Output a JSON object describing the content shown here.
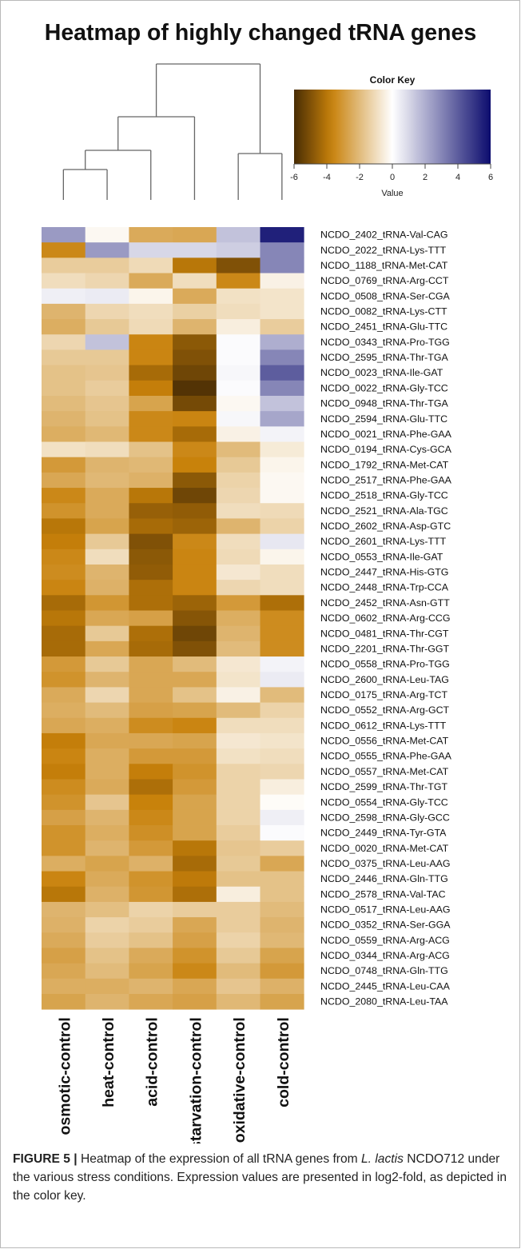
{
  "chart_data": {
    "type": "heatmap",
    "title": "Heatmap of highly changed tRNA genes",
    "color_key": {
      "title": "Color Key",
      "xlabel": "Value",
      "ticks": [
        -6,
        -4,
        -2,
        0,
        2,
        4,
        6
      ],
      "range": [
        -6,
        6
      ],
      "negative_color": "#c8810a",
      "zero_color": "#ffffff",
      "positive_color": "#0c0c6e"
    },
    "columns": [
      "osmotic-control",
      "heat-control",
      "acid-control",
      "starvation-control",
      "oxidative-control",
      "cold-control"
    ],
    "rows": [
      "NCDO_2402_tRNA-Val-CAG",
      "NCDO_2022_tRNA-Lys-TTT",
      "NCDO_1188_tRNA-Met-CAT",
      "NCDO_0769_tRNA-Arg-CCT",
      "NCDO_0508_tRNA-Ser-CGA",
      "NCDO_0082_tRNA-Lys-CTT",
      "NCDO_2451_tRNA-Glu-TTC",
      "NCDO_0343_tRNA-Pro-TGG",
      "NCDO_2595_tRNA-Thr-TGA",
      "NCDO_0023_tRNA-Ile-GAT",
      "NCDO_0022_tRNA-Gly-TCC",
      "NCDO_0948_tRNA-Thr-TGA",
      "NCDO_2594_tRNA-Glu-TTC",
      "NCDO_0021_tRNA-Phe-GAA",
      "NCDO_0194_tRNA-Cys-GCA",
      "NCDO_1792_tRNA-Met-CAT",
      "NCDO_2517_tRNA-Phe-GAA",
      "NCDO_2518_tRNA-Gly-TCC",
      "NCDO_2521_tRNA-Ala-TGC",
      "NCDO_2602_tRNA-Asp-GTC",
      "NCDO_2601_tRNA-Lys-TTT",
      "NCDO_0553_tRNA-Ile-GAT",
      "NCDO_2447_tRNA-His-GTG",
      "NCDO_2448_tRNA-Trp-CCA",
      "NCDO_2452_tRNA-Asn-GTT",
      "NCDO_0602_tRNA-Arg-CCG",
      "NCDO_0481_tRNA-Thr-CGT",
      "NCDO_2201_tRNA-Thr-GGT",
      "NCDO_0558_tRNA-Pro-TGG",
      "NCDO_2600_tRNA-Leu-TAG",
      "NCDO_0175_tRNA-Arg-TCT",
      "NCDO_0552_tRNA-Arg-GCT",
      "NCDO_0612_tRNA-Lys-TTT",
      "NCDO_0556_tRNA-Met-CAT",
      "NCDO_0555_tRNA-Phe-GAA",
      "NCDO_0557_tRNA-Met-CAT",
      "NCDO_2599_tRNA-Thr-TGT",
      "NCDO_0554_tRNA-Gly-TCC",
      "NCDO_2598_tRNA-Gly-GCC",
      "NCDO_2449_tRNA-Tyr-GTA",
      "NCDO_0020_tRNA-Met-CAT",
      "NCDO_0375_tRNA-Leu-AAG",
      "NCDO_2446_tRNA-Gln-TTG",
      "NCDO_2578_tRNA-Val-TAC",
      "NCDO_0517_tRNA-Leu-AAG",
      "NCDO_0352_tRNA-Ser-GGA",
      "NCDO_0559_tRNA-Arg-ACG",
      "NCDO_0344_tRNA-Arg-ACG",
      "NCDO_0748_tRNA-Gln-TTG",
      "NCDO_2445_tRNA-Leu-CAA",
      "NCDO_2080_tRNA-Leu-TAA"
    ],
    "values": [
      [
        2.5,
        -0.2,
        -2.5,
        -2.6,
        1.5,
        5.5
      ],
      [
        -3.5,
        2.5,
        1.0,
        1.0,
        1.2,
        3.0
      ],
      [
        -1.5,
        -1.5,
        -1.1,
        -4.0,
        -5.0,
        3.0
      ],
      [
        -1.0,
        -1.2,
        -2.5,
        -1.0,
        -3.5,
        -0.4
      ],
      [
        0.4,
        0.5,
        -0.3,
        -2.5,
        -0.9,
        -0.8
      ],
      [
        -2.2,
        -1.2,
        -1.0,
        -1.4,
        -1.0,
        -0.8
      ],
      [
        -2.4,
        -1.6,
        -1.1,
        -2.2,
        -0.5,
        -1.5
      ],
      [
        -1.2,
        1.5,
        -3.6,
        -4.8,
        0.1,
        2.0
      ],
      [
        -1.6,
        -1.6,
        -3.6,
        -5.0,
        0.1,
        3.0
      ],
      [
        -1.8,
        -1.7,
        -4.3,
        -5.3,
        0.2,
        4.0
      ],
      [
        -1.8,
        -1.5,
        -3.8,
        -5.8,
        0.1,
        3.0
      ],
      [
        -2.0,
        -1.7,
        -2.7,
        -5.2,
        -0.2,
        1.5
      ],
      [
        -2.2,
        -1.8,
        -3.5,
        -3.6,
        0.2,
        2.2
      ],
      [
        -2.4,
        -2.1,
        -3.5,
        -4.3,
        -0.4,
        0.3
      ],
      [
        -0.9,
        -1.0,
        -1.8,
        -3.5,
        -2.0,
        -0.6
      ],
      [
        -3.0,
        -2.2,
        -2.1,
        -3.7,
        -1.6,
        -0.3
      ],
      [
        -2.6,
        -2.1,
        -2.3,
        -4.8,
        -1.3,
        -0.2
      ],
      [
        -3.5,
        -2.5,
        -4.0,
        -5.3,
        -1.2,
        -0.2
      ],
      [
        -3.2,
        -2.5,
        -4.6,
        -4.7,
        -1.0,
        -1.1
      ],
      [
        -4.0,
        -2.7,
        -4.3,
        -4.5,
        -2.2,
        -1.3
      ],
      [
        -3.8,
        -1.6,
        -5.0,
        -3.5,
        -1.0,
        0.6
      ],
      [
        -3.5,
        -1.0,
        -4.8,
        -3.6,
        -1.1,
        -0.3
      ],
      [
        -3.4,
        -2.2,
        -4.7,
        -3.6,
        -0.7,
        -1.0
      ],
      [
        -3.6,
        -2.3,
        -4.2,
        -3.6,
        -1.2,
        -1.0
      ],
      [
        -4.3,
        -3.1,
        -4.2,
        -4.5,
        -3.0,
        -4.2
      ],
      [
        -4.0,
        -2.6,
        -2.8,
        -4.9,
        -2.4,
        -3.4
      ],
      [
        -4.3,
        -1.6,
        -4.2,
        -5.3,
        -2.2,
        -3.4
      ],
      [
        -4.3,
        -2.6,
        -4.3,
        -5.0,
        -2.0,
        -3.4
      ],
      [
        -3.0,
        -1.6,
        -2.6,
        -2.0,
        -0.7,
        0.3
      ],
      [
        -3.2,
        -2.2,
        -2.6,
        -2.6,
        -0.8,
        0.5
      ],
      [
        -2.5,
        -1.2,
        -2.6,
        -1.8,
        -0.4,
        -2.0
      ],
      [
        -2.4,
        -2.0,
        -2.8,
        -2.7,
        -2.0,
        -1.3
      ],
      [
        -2.6,
        -2.4,
        -3.4,
        -3.6,
        -1.0,
        -1.0
      ],
      [
        -3.8,
        -2.6,
        -2.6,
        -2.7,
        -0.7,
        -0.8
      ],
      [
        -3.6,
        -2.4,
        -3.0,
        -3.0,
        -0.9,
        -1.0
      ],
      [
        -3.8,
        -2.4,
        -3.8,
        -3.2,
        -1.3,
        -1.2
      ],
      [
        -3.4,
        -2.5,
        -4.2,
        -3.0,
        -1.3,
        -0.5
      ],
      [
        -3.2,
        -1.7,
        -3.7,
        -2.7,
        -1.3,
        -0.1
      ],
      [
        -2.8,
        -2.2,
        -3.5,
        -2.7,
        -1.3,
        0.4
      ],
      [
        -3.2,
        -2.4,
        -3.3,
        -2.7,
        -1.5,
        0.1
      ],
      [
        -3.2,
        -2.2,
        -3.0,
        -4.0,
        -1.7,
        -1.5
      ],
      [
        -2.4,
        -2.7,
        -2.3,
        -4.3,
        -1.6,
        -2.6
      ],
      [
        -3.6,
        -2.5,
        -3.2,
        -3.9,
        -1.8,
        -1.8
      ],
      [
        -4.0,
        -2.3,
        -3.1,
        -4.2,
        -0.5,
        -1.8
      ],
      [
        -2.2,
        -1.9,
        -1.3,
        -1.5,
        -1.5,
        -2.0
      ],
      [
        -2.3,
        -1.3,
        -1.5,
        -2.6,
        -1.5,
        -2.2
      ],
      [
        -2.5,
        -1.5,
        -1.8,
        -2.8,
        -1.3,
        -2.1
      ],
      [
        -2.8,
        -1.8,
        -2.5,
        -3.2,
        -1.6,
        -2.7
      ],
      [
        -2.6,
        -2.0,
        -2.7,
        -3.5,
        -2.0,
        -3.0
      ],
      [
        -2.4,
        -2.4,
        -2.2,
        -2.6,
        -1.7,
        -2.3
      ],
      [
        -2.7,
        -2.2,
        -2.6,
        -2.8,
        -2.1,
        -2.7
      ]
    ]
  },
  "caption": {
    "label": "FIGURE 5 |",
    "text_before": " Heatmap of the expression of all tRNA genes from ",
    "species": "L. lactis",
    "text_after": " NCDO712 under the various stress conditions. Expression values are presented in log2-fold, as depicted in the color key."
  }
}
